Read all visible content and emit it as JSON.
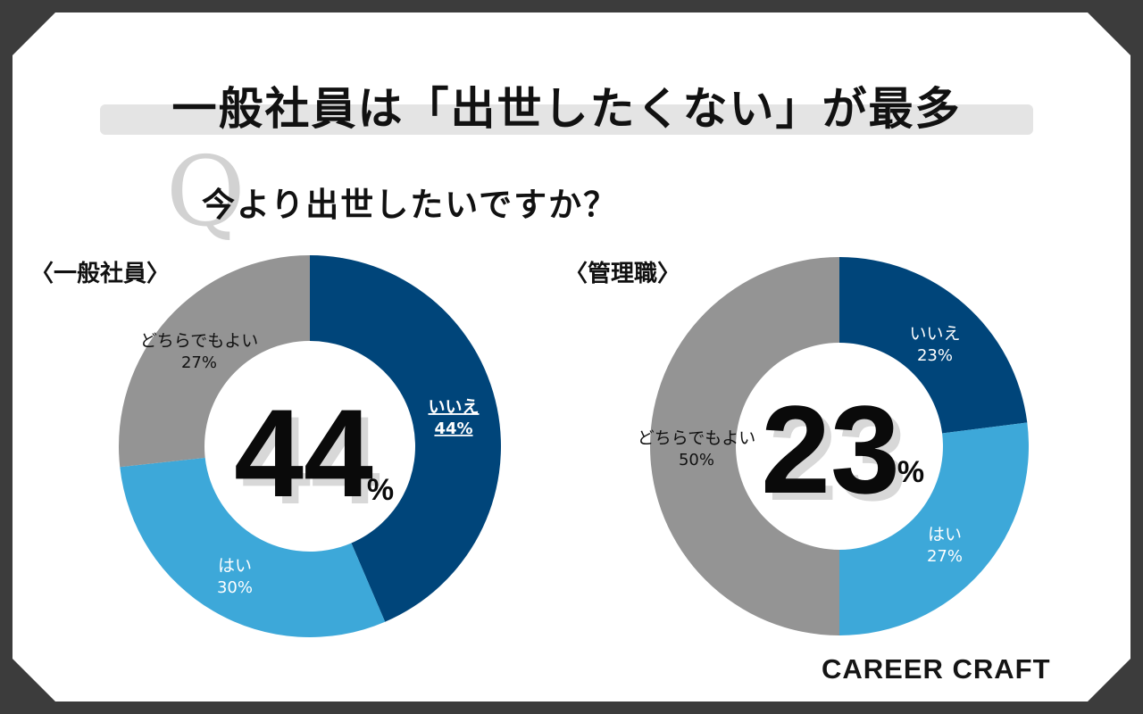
{
  "title": "一般社員は「出世したくない」が最多",
  "question": "今より出世したいですか？",
  "q_mark": "Q",
  "brand": "CAREER CRAFT",
  "colors": {
    "no": "#00457a",
    "yes": "#3da8d9",
    "either": "#949494"
  },
  "chart_data": [
    {
      "type": "pie",
      "name": "〈一般社員〉",
      "big_value": "44",
      "big_unit": "%",
      "slices": [
        {
          "label": "いいえ",
          "value": 44,
          "display": "44%"
        },
        {
          "label": "はい",
          "value": 30,
          "display": "30%"
        },
        {
          "label": "どちらでもよい",
          "value": 27,
          "display": "27%"
        }
      ]
    },
    {
      "type": "pie",
      "name": "〈管理職〉",
      "big_value": "23",
      "big_unit": "%",
      "slices": [
        {
          "label": "いいえ",
          "value": 23,
          "display": "23%"
        },
        {
          "label": "はい",
          "value": 27,
          "display": "27%"
        },
        {
          "label": "どちらでもよい",
          "value": 50,
          "display": "50%"
        }
      ]
    }
  ]
}
